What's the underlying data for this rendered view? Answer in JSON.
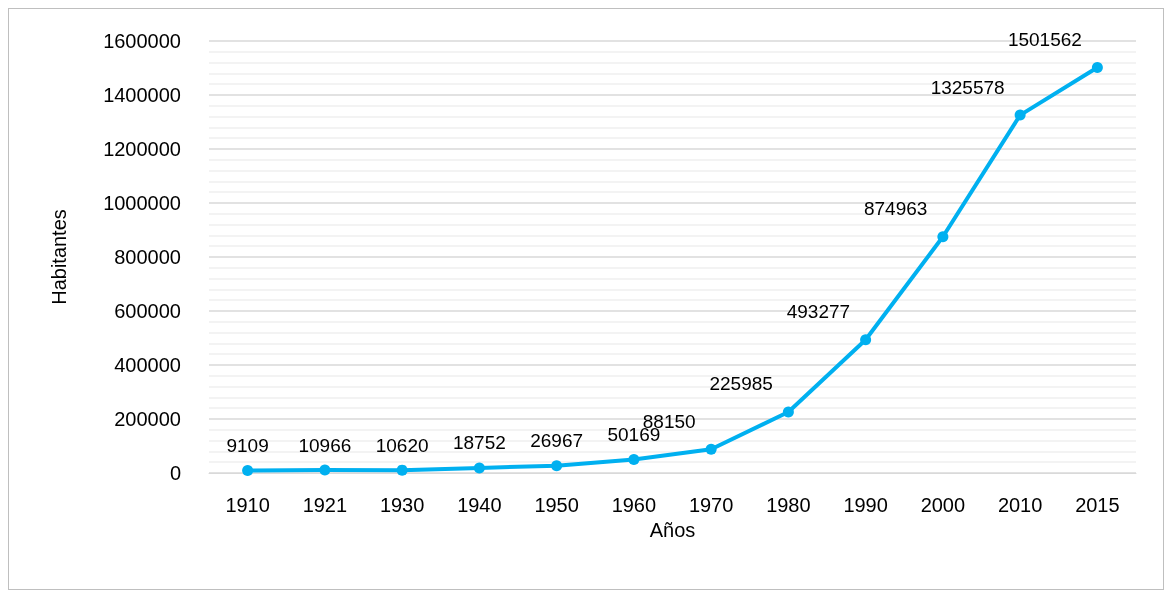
{
  "chart_data": {
    "type": "line",
    "xlabel": "Años",
    "ylabel": "Habitantes",
    "categories": [
      "1910",
      "1921",
      "1930",
      "1940",
      "1950",
      "1960",
      "1970",
      "1980",
      "1990",
      "2000",
      "2010",
      "2015"
    ],
    "series": [
      {
        "color": "#00b0f0",
        "values": [
          9109,
          10966,
          10620,
          18752,
          26967,
          50169,
          88150,
          225985,
          493277,
          874963,
          1325578,
          1501562
        ]
      }
    ],
    "ylim": [
      0,
      1600000
    ],
    "yticks": [
      0,
      200000,
      400000,
      600000,
      800000,
      1000000,
      1200000,
      1400000,
      1600000
    ],
    "grid": "y",
    "marker": "circle",
    "data_labels": true
  }
}
